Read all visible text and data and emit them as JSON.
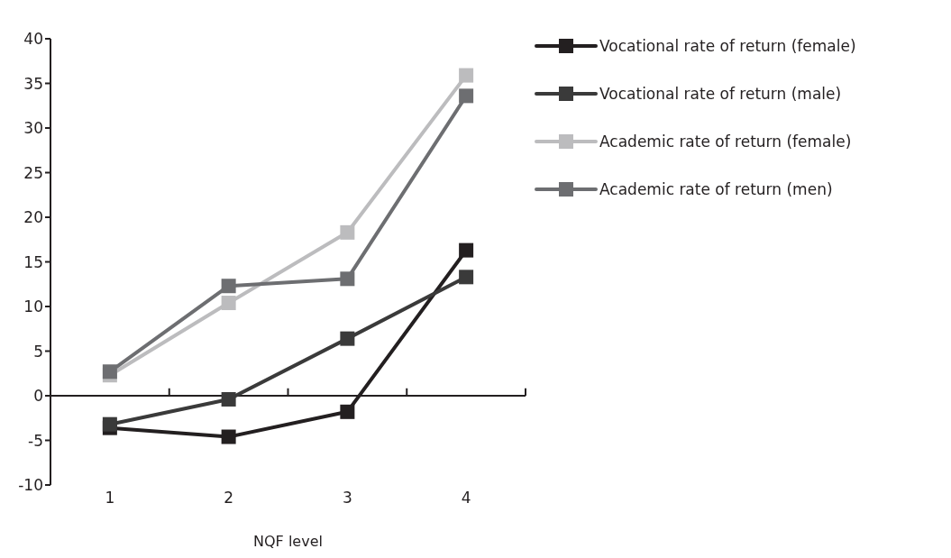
{
  "chart_data": {
    "type": "line",
    "xlabel": "NQF level",
    "x": [
      1,
      2,
      3,
      4
    ],
    "xlim": [
      0.5,
      4.5
    ],
    "xticks": [
      1,
      2,
      3,
      4
    ],
    "ylim": [
      -10,
      40
    ],
    "yticks": [
      -10,
      -5,
      0,
      5,
      10,
      15,
      20,
      25,
      30,
      35,
      40
    ],
    "legend": "right",
    "marker": "square",
    "line_style": "solid",
    "series": [
      {
        "name": "Vocational rate of return (female)",
        "color": "#231f20",
        "values": [
          -3.6,
          -4.6,
          -1.8,
          16.3
        ]
      },
      {
        "name": "Vocational rate of return (male)",
        "color": "#3a3a3a",
        "values": [
          -3.2,
          -0.4,
          6.4,
          13.3
        ]
      },
      {
        "name": "Academic rate of return (female)",
        "color": "#bcbcbe",
        "values": [
          2.3,
          10.4,
          18.3,
          35.9
        ]
      },
      {
        "name": "Academic rate of return (men)",
        "color": "#6d6e71",
        "values": [
          2.7,
          12.3,
          13.1,
          33.6
        ]
      }
    ]
  }
}
